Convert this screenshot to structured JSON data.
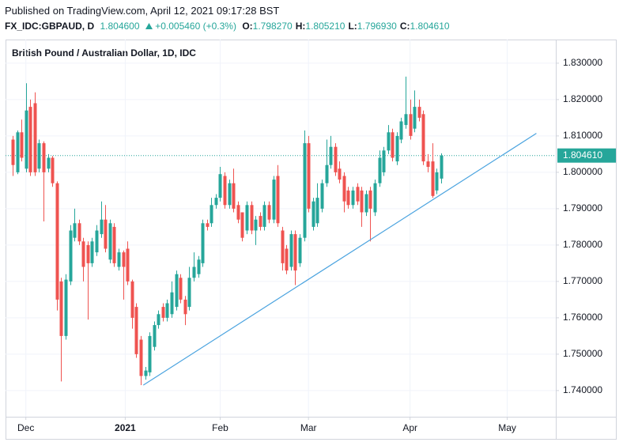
{
  "header": {
    "published": "Published on TradingView.com, April 12, 2021 09:17:28 BST",
    "symbol": "FX_IDC:GBPAUD, D",
    "price": "1.804600",
    "change": "+0.005460 (+0.3%)",
    "ohlc": [
      {
        "label": "O:",
        "value": "1.798270"
      },
      {
        "label": "H:",
        "value": "1.805210"
      },
      {
        "label": "L:",
        "value": "1.796930"
      },
      {
        "label": "C:",
        "value": "1.804610"
      }
    ]
  },
  "chart_data": {
    "type": "candlestick",
    "title": "British Pound / Australian Dollar, 1D, IDC",
    "up_color": "#26a69a",
    "down_color": "#ef5350",
    "grid": true,
    "open": [
      1.809,
      1.8,
      1.811,
      1.801,
      1.818,
      1.819,
      1.801,
      1.808,
      1.801,
      1.804,
      1.797,
      1.77,
      1.755,
      1.77,
      1.782,
      1.786,
      1.781,
      1.78,
      1.775,
      1.778,
      1.783,
      1.787,
      1.776,
      1.785,
      1.774,
      1.778,
      1.779,
      1.77,
      1.763,
      1.754,
      1.744,
      1.745,
      1.752,
      1.758,
      1.763,
      1.76,
      1.761,
      1.763,
      1.771,
      1.765,
      1.763,
      1.771,
      1.772,
      1.775,
      1.786,
      1.786,
      1.791,
      1.793,
      1.799,
      1.791,
      1.797,
      1.791,
      1.789,
      1.784,
      1.791,
      1.784,
      1.788,
      1.785,
      1.791,
      1.787,
      1.799,
      1.784,
      1.779,
      1.774,
      1.783,
      1.775,
      1.782,
      1.808,
      1.785,
      1.786,
      1.79,
      1.797,
      1.802,
      1.807,
      1.801,
      1.799,
      1.795,
      1.791,
      1.796,
      1.795,
      1.789,
      1.795,
      1.789,
      1.797,
      1.8,
      1.806,
      1.811,
      1.803,
      1.809,
      1.813,
      1.816,
      1.812,
      1.818,
      1.816,
      1.803,
      1.803,
      1.795,
      1.79827
    ],
    "high": [
      1.81,
      1.8115,
      1.8145,
      1.8245,
      1.82,
      1.822,
      1.809,
      1.8085,
      1.805,
      1.8045,
      1.7975,
      1.771,
      1.772,
      1.7855,
      1.79,
      1.787,
      1.782,
      1.781,
      1.782,
      1.7855,
      1.792,
      1.791,
      1.787,
      1.786,
      1.779,
      1.7785,
      1.781,
      1.7705,
      1.764,
      1.755,
      1.7465,
      1.756,
      1.759,
      1.762,
      1.764,
      1.765,
      1.77,
      1.773,
      1.772,
      1.766,
      1.774,
      1.778,
      1.777,
      1.787,
      1.787,
      1.793,
      1.794,
      1.8015,
      1.8,
      1.798,
      1.801,
      1.792,
      1.789,
      1.792,
      1.792,
      1.788,
      1.789,
      1.792,
      1.792,
      1.799,
      1.802,
      1.785,
      1.78,
      1.784,
      1.784,
      1.783,
      1.8115,
      1.81,
      1.793,
      1.797,
      1.798,
      1.809,
      1.81,
      1.808,
      1.803,
      1.8,
      1.796,
      1.796,
      1.797,
      1.796,
      1.795,
      1.796,
      1.798,
      1.806,
      1.807,
      1.813,
      1.812,
      1.811,
      1.815,
      1.8263,
      1.82,
      1.8225,
      1.82,
      1.817,
      1.805,
      1.808,
      1.801,
      1.80521
    ],
    "low": [
      1.799,
      1.7995,
      1.803,
      1.8,
      1.799,
      1.799,
      1.8,
      1.7865,
      1.8,
      1.796,
      1.762,
      1.7425,
      1.754,
      1.769,
      1.781,
      1.78,
      1.77,
      1.7595,
      1.774,
      1.777,
      1.782,
      1.778,
      1.775,
      1.774,
      1.773,
      1.765,
      1.769,
      1.757,
      1.749,
      1.7415,
      1.743,
      1.744,
      1.751,
      1.757,
      1.759,
      1.759,
      1.76,
      1.762,
      1.764,
      1.758,
      1.762,
      1.77,
      1.771,
      1.774,
      1.784,
      1.785,
      1.79,
      1.792,
      1.79,
      1.79,
      1.789,
      1.786,
      1.781,
      1.783,
      1.783,
      1.78,
      1.784,
      1.784,
      1.786,
      1.786,
      1.785,
      1.773,
      1.772,
      1.773,
      1.769,
      1.774,
      1.781,
      1.789,
      1.784,
      1.785,
      1.789,
      1.796,
      1.801,
      1.799,
      1.797,
      1.789,
      1.79,
      1.79,
      1.791,
      1.785,
      1.788,
      1.781,
      1.788,
      1.796,
      1.799,
      1.805,
      1.803,
      1.802,
      1.808,
      1.812,
      1.809,
      1.811,
      1.814,
      1.802,
      1.8,
      1.793,
      1.794,
      1.79693
    ],
    "close": [
      1.802,
      1.811,
      1.804,
      1.817,
      1.8,
      1.8,
      1.808,
      1.8,
      1.804,
      1.797,
      1.765,
      1.755,
      1.7705,
      1.784,
      1.786,
      1.781,
      1.774,
      1.775,
      1.781,
      1.784,
      1.787,
      1.779,
      1.786,
      1.775,
      1.778,
      1.774,
      1.77,
      1.76,
      1.75,
      1.744,
      1.7455,
      1.755,
      1.758,
      1.761,
      1.76,
      1.764,
      1.767,
      1.772,
      1.765,
      1.761,
      1.771,
      1.774,
      1.776,
      1.786,
      1.785,
      1.791,
      1.793,
      1.7995,
      1.791,
      1.797,
      1.79,
      1.787,
      1.782,
      1.791,
      1.784,
      1.787,
      1.785,
      1.791,
      1.787,
      1.798,
      1.786,
      1.775,
      1.773,
      1.783,
      1.773,
      1.782,
      1.808,
      1.79,
      1.792,
      1.793,
      1.797,
      1.802,
      1.807,
      1.8,
      1.798,
      1.792,
      1.791,
      1.795,
      1.792,
      1.789,
      1.794,
      1.79,
      1.797,
      1.804,
      1.806,
      1.811,
      1.804,
      1.81,
      1.814,
      1.816,
      1.81,
      1.818,
      1.815,
      1.803,
      1.8015,
      1.7935,
      1.8,
      1.80461
    ],
    "xlim": [
      -1.6,
      123
    ],
    "xticks": [
      {
        "value": 3,
        "label": "Dec"
      },
      {
        "value": 25.5,
        "label": "2021"
      },
      {
        "value": 47,
        "label": "Feb"
      },
      {
        "value": 67,
        "label": "Mar"
      },
      {
        "value": 90,
        "label": "Apr"
      },
      {
        "value": 112,
        "label": "May"
      }
    ],
    "ylim": [
      1.7328,
      1.8365
    ],
    "yticks": [
      {
        "value": 1.74,
        "label": "1.740000"
      },
      {
        "value": 1.75,
        "label": "1.750000"
      },
      {
        "value": 1.76,
        "label": "1.760000"
      },
      {
        "value": 1.77,
        "label": "1.770000"
      },
      {
        "value": 1.78,
        "label": "1.780000"
      },
      {
        "value": 1.79,
        "label": "1.790000"
      },
      {
        "value": 1.8,
        "label": "1.800000"
      },
      {
        "value": 1.81,
        "label": "1.810000"
      },
      {
        "value": 1.82,
        "label": "1.820000"
      },
      {
        "value": 1.83,
        "label": "1.830000"
      }
    ],
    "last_price": {
      "value": 1.80461,
      "label": "1.804610",
      "color": "#26a69a"
    },
    "trendline": {
      "x": [
        29.6,
        118.6
      ],
      "y": [
        1.7415,
        1.8107
      ],
      "color": "#4aa3df"
    }
  }
}
